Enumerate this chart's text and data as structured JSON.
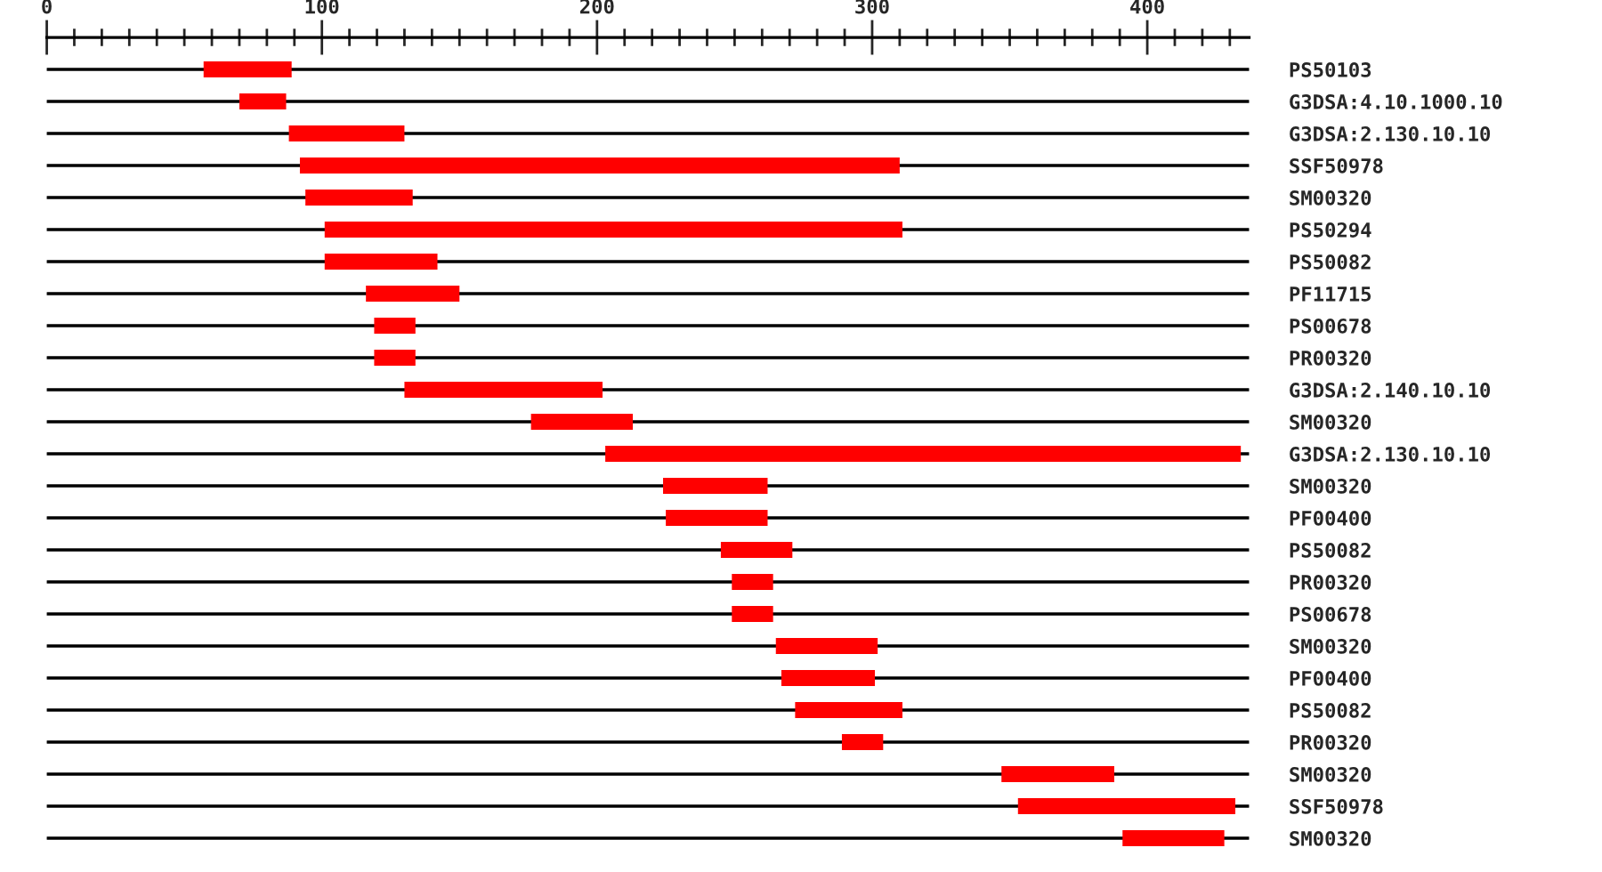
{
  "chart_data": {
    "type": "bar",
    "orientation": "horizontal",
    "color": "#ff0000",
    "grid": "y",
    "categories": [
      "PS50103",
      "G3DSA:4.10.1000.10",
      "G3DSA:2.130.10.10",
      "SSF50978",
      "SM00320",
      "PS50294",
      "PS50082",
      "PF11715",
      "PS00678",
      "PR00320",
      "G3DSA:2.140.10.10",
      "SM00320",
      "G3DSA:2.130.10.10",
      "SM00320",
      "PF00400",
      "PS50082",
      "PR00320",
      "PS00678",
      "SM00320",
      "PF00400",
      "PS50082",
      "PR00320",
      "SM00320",
      "SSF50978",
      "SM00320"
    ],
    "base": [
      57,
      70,
      88,
      92,
      94,
      101,
      101,
      116,
      119,
      119,
      130,
      176,
      203,
      224,
      225,
      245,
      249,
      249,
      265,
      267,
      272,
      289,
      347,
      353,
      391
    ],
    "values": [
      32,
      17,
      42,
      218,
      39,
      210,
      41,
      34,
      15,
      15,
      72,
      37,
      231,
      38,
      37,
      26,
      15,
      15,
      37,
      34,
      39,
      15,
      41,
      79,
      37
    ],
    "xlim": [
      0,
      437
    ],
    "xticks": [
      0,
      {
        "value": 10,
        "label": null
      },
      {
        "value": 20,
        "label": null
      },
      {
        "value": 30,
        "label": null
      },
      {
        "value": 40,
        "label": null
      },
      {
        "value": 50,
        "label": null
      },
      {
        "value": 60,
        "label": null
      },
      {
        "value": 70,
        "label": null
      },
      {
        "value": 80,
        "label": null
      },
      {
        "value": 90,
        "label": null
      },
      100,
      {
        "value": 110,
        "label": null
      },
      {
        "value": 120,
        "label": null
      },
      {
        "value": 130,
        "label": null
      },
      {
        "value": 140,
        "label": null
      },
      {
        "value": 150,
        "label": null
      },
      {
        "value": 160,
        "label": null
      },
      {
        "value": 170,
        "label": null
      },
      {
        "value": 180,
        "label": null
      },
      {
        "value": 190,
        "label": null
      },
      200,
      {
        "value": 210,
        "label": null
      },
      {
        "value": 220,
        "label": null
      },
      {
        "value": 230,
        "label": null
      },
      {
        "value": 240,
        "label": null
      },
      {
        "value": 250,
        "label": null
      },
      {
        "value": 260,
        "label": null
      },
      {
        "value": 270,
        "label": null
      },
      {
        "value": 280,
        "label": null
      },
      {
        "value": 290,
        "label": null
      },
      300,
      {
        "value": 310,
        "label": null
      },
      {
        "value": 320,
        "label": null
      },
      {
        "value": 330,
        "label": null
      },
      {
        "value": 340,
        "label": null
      },
      {
        "value": 350,
        "label": null
      },
      {
        "value": 360,
        "label": null
      },
      {
        "value": 370,
        "label": null
      },
      {
        "value": 380,
        "label": null
      },
      {
        "value": 390,
        "label": null
      },
      400,
      {
        "value": 410,
        "label": null
      },
      {
        "value": 420,
        "label": null
      },
      {
        "value": 430,
        "label": null
      }
    ]
  }
}
